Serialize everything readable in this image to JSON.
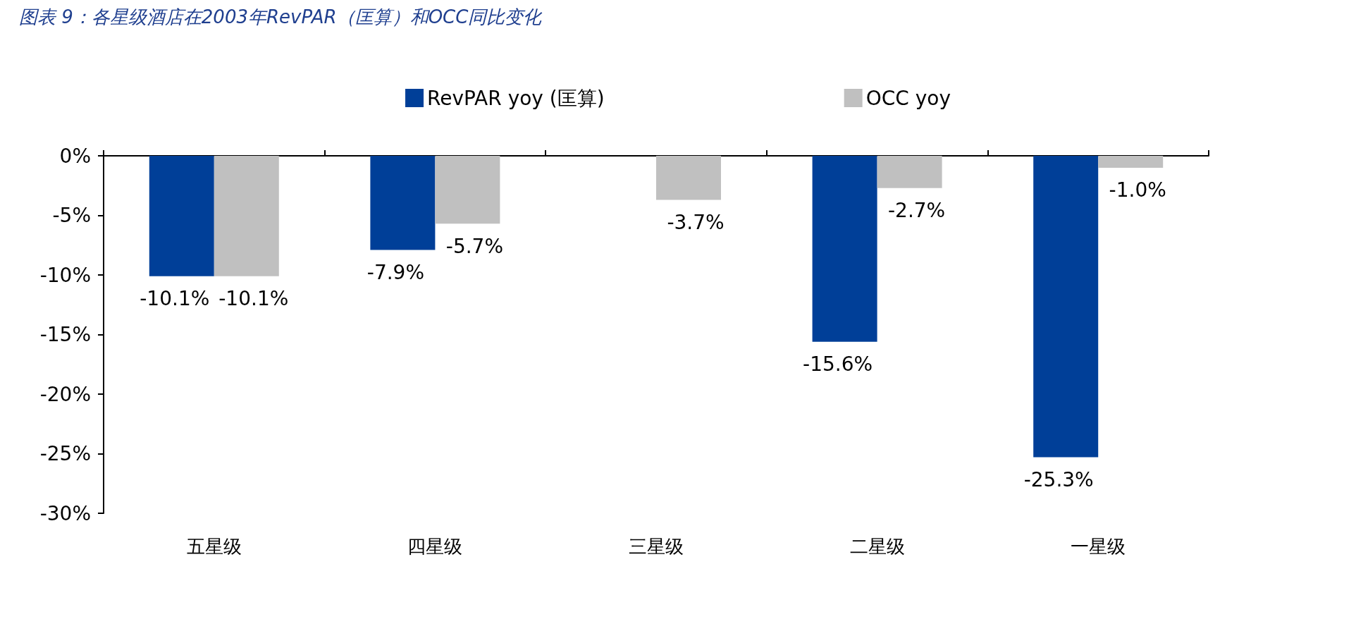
{
  "chart_data": {
    "type": "bar",
    "title": "图表 9：各星级酒店在2003年RevPAR（匡算）和OCC同比变化",
    "categories": [
      "五星级",
      "四星级",
      "三星级",
      "二星级",
      "一星级"
    ],
    "series": [
      {
        "name": "RevPAR yoy (匡算)",
        "color": "#003f98",
        "values": [
          -10.1,
          -7.9,
          null,
          -15.6,
          -25.3
        ],
        "value_labels": [
          "-10.1%",
          "-7.9%",
          null,
          "-15.6%",
          "-25.3%"
        ]
      },
      {
        "name": "OCC yoy",
        "color": "#c0c0c0",
        "values": [
          -10.1,
          -5.7,
          -3.7,
          -2.7,
          -1.0
        ],
        "value_labels": [
          "-10.1%",
          "-5.7%",
          "-3.7%",
          "-2.7%",
          "-1.0%"
        ]
      }
    ],
    "ylim": [
      -30,
      0
    ],
    "yticks": [
      {
        "value": 0,
        "label": "0%"
      },
      {
        "value": -5,
        "label": "-5%"
      },
      {
        "value": -10,
        "label": "-10%"
      },
      {
        "value": -15,
        "label": "-15%"
      },
      {
        "value": -20,
        "label": "-20%"
      },
      {
        "value": -25,
        "label": "-25%"
      },
      {
        "value": -30,
        "label": "-30%"
      }
    ],
    "grid": false,
    "legend": "top"
  }
}
